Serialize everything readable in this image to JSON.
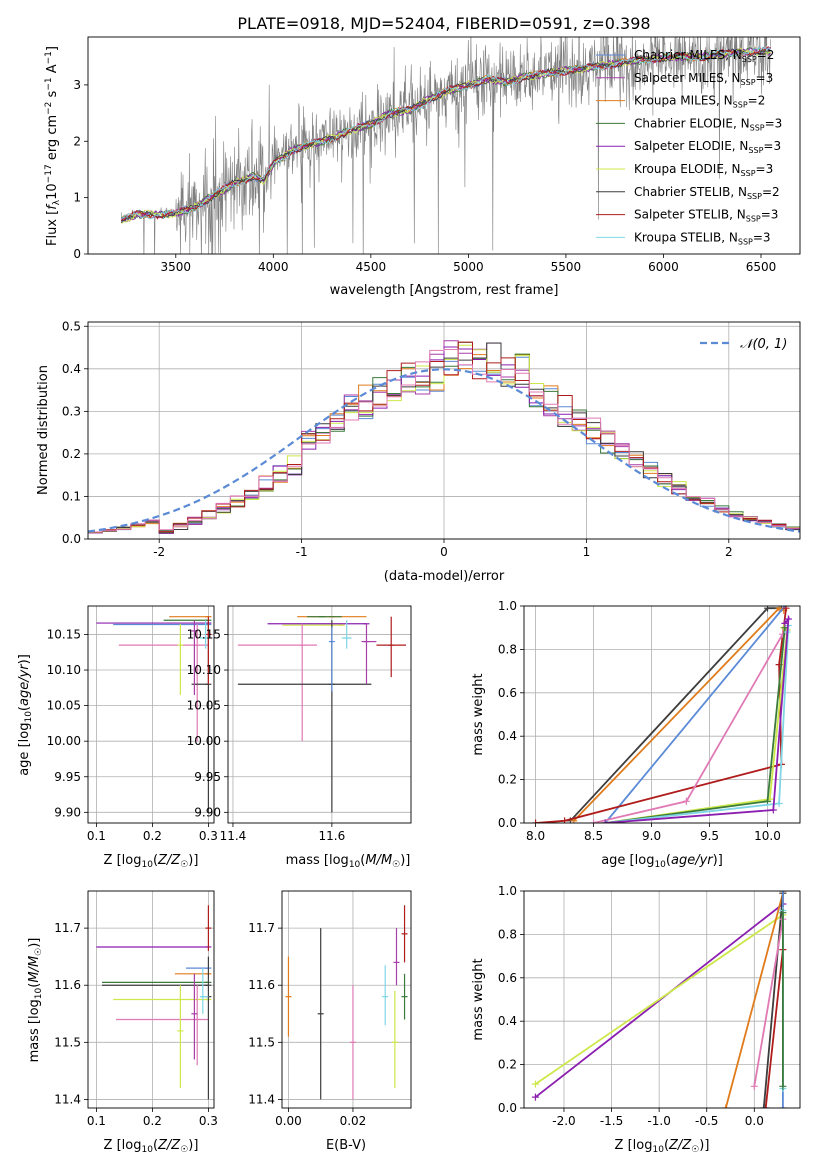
{
  "figure": {
    "title": "PLATE=0918, MJD=52404, FIBERID=0591, z=0.398"
  },
  "colors": {
    "chab_miles": "#5b8ad6",
    "salp_miles": "#a83ea8",
    "krou_miles": "#e07b1b",
    "chab_elodie": "#3a7a3a",
    "salp_elodie": "#8b1fb0",
    "krou_elodie": "#cde84a",
    "chab_stelib": "#3d3d3d",
    "salp_stelib": "#b01c1c",
    "krou_stelib": "#7fd6e6",
    "pink": "#e07ab5",
    "data": "#7f7f7f",
    "normal": "#5b8ad6"
  },
  "chart_data": [
    {
      "id": "spectrum",
      "type": "line",
      "xlabel": "wavelength [Angstrom, rest frame]",
      "ylabel": "Flux [f_λ10^-17 erg cm^-2 s^-1 A^-1]",
      "xlim": [
        3050,
        6700
      ],
      "ylim": [
        0,
        3.85
      ],
      "xticks": [
        3500,
        4000,
        4500,
        5000,
        5500,
        6000,
        6500
      ],
      "yticks": [
        0,
        1,
        2,
        3
      ],
      "legend_position": "right",
      "legend": [
        {
          "label": "Chabrier MILES, N_SSP=2",
          "color": "chab_miles"
        },
        {
          "label": "Salpeter MILES, N_SSP=3",
          "color": "salp_miles"
        },
        {
          "label": "Kroupa MILES, N_SSP=2",
          "color": "krou_miles"
        },
        {
          "label": "Chabrier ELODIE, N_SSP=3",
          "color": "chab_elodie"
        },
        {
          "label": "Salpeter ELODIE, N_SSP=3",
          "color": "salp_elodie"
        },
        {
          "label": "Kroupa ELODIE, N_SSP=3",
          "color": "krou_elodie"
        },
        {
          "label": "Chabrier STELIB, N_SSP=2",
          "color": "chab_stelib"
        },
        {
          "label": "Salpeter STELIB, N_SSP=3",
          "color": "salp_stelib"
        },
        {
          "label": "Kroupa STELIB, N_SSP=3",
          "color": "krou_stelib"
        }
      ],
      "continuum": {
        "x": [
          3220,
          3300,
          3400,
          3500,
          3600,
          3700,
          3800,
          3900,
          3950,
          4000,
          4100,
          4200,
          4300,
          4400,
          4500,
          4600,
          4700,
          4800,
          4900,
          5000,
          5100,
          5200,
          5300,
          5400,
          5500,
          5600,
          5700,
          5800,
          5900,
          6000,
          6100,
          6200,
          6300,
          6400,
          6500,
          6550
        ],
        "y": [
          0.6,
          0.7,
          0.7,
          0.72,
          0.83,
          1.05,
          1.25,
          1.38,
          1.3,
          1.6,
          1.85,
          1.95,
          2.05,
          2.2,
          2.3,
          2.5,
          2.55,
          2.75,
          2.9,
          3.0,
          3.1,
          3.05,
          3.15,
          3.2,
          3.25,
          3.3,
          3.35,
          3.4,
          3.45,
          3.48,
          3.5,
          3.5,
          3.55,
          3.58,
          3.6,
          3.6
        ]
      }
    },
    {
      "id": "residuals",
      "type": "line",
      "xlabel": "(data-model)/error",
      "ylabel": "Normed distribution",
      "xlim": [
        -2.5,
        2.5
      ],
      "ylim": [
        0,
        0.51
      ],
      "xticks": [
        -2,
        -1,
        0,
        1,
        2
      ],
      "yticks": [
        0.0,
        0.1,
        0.2,
        0.3,
        0.4,
        0.5
      ],
      "legend_position": "top-right",
      "legend": [
        {
          "label": "𝒩(0, 1)",
          "color": "normal"
        }
      ],
      "bin_width": 0.1,
      "bin_start": -2.5
    },
    {
      "id": "age_vs_Z",
      "type": "scatter",
      "xlabel": "Z [log10(Z/Z☉)]",
      "ylabel": "age  [log10(age/yr)]",
      "xlim": [
        0.085,
        0.31
      ],
      "ylim": [
        9.885,
        10.19
      ],
      "xticks": [
        0.1,
        0.2,
        0.3
      ],
      "yticks": [
        9.9,
        9.95,
        10.0,
        10.05,
        10.1,
        10.15
      ],
      "points": [
        {
          "x": 0.3,
          "y": 10.166,
          "xlo": 0.1,
          "xhi": 0.3,
          "ylo": 10.166,
          "yhi": 10.166,
          "color": "salp_elodie"
        },
        {
          "x": 0.3,
          "y": 10.175,
          "xlo": 0.23,
          "xhi": 0.3,
          "ylo": 10.175,
          "yhi": 10.175,
          "color": "krou_miles"
        },
        {
          "x": 0.3,
          "y": 10.17,
          "xlo": 0.22,
          "xhi": 0.3,
          "ylo": 10.17,
          "yhi": 10.17,
          "color": "chab_elodie"
        },
        {
          "x": 0.3,
          "y": 10.164,
          "xlo": 0.13,
          "xhi": 0.3,
          "ylo": 10.164,
          "yhi": 10.164,
          "color": "chab_miles"
        },
        {
          "x": 0.28,
          "y": 10.135,
          "xlo": 0.14,
          "xhi": 0.3,
          "ylo": 10.0,
          "yhi": 10.165,
          "color": "pink"
        },
        {
          "x": 0.3,
          "y": 10.08,
          "xlo": 0.27,
          "xhi": 0.3,
          "ylo": 9.9,
          "yhi": 10.17,
          "color": "chab_stelib"
        },
        {
          "x": 0.25,
          "y": 10.135,
          "xlo": 0.25,
          "xhi": 0.25,
          "ylo": 10.065,
          "yhi": 10.165,
          "color": "krou_elodie"
        },
        {
          "x": 0.275,
          "y": 10.155,
          "xlo": 0.275,
          "xhi": 0.275,
          "ylo": 10.065,
          "yhi": 10.17,
          "color": "salp_miles"
        },
        {
          "x": 0.3,
          "y": 10.15,
          "xlo": 0.3,
          "xhi": 0.3,
          "ylo": 10.08,
          "yhi": 10.175,
          "color": "salp_stelib"
        },
        {
          "x": 0.295,
          "y": 10.145,
          "xlo": 0.285,
          "xhi": 0.3,
          "ylo": 10.13,
          "yhi": 10.17,
          "color": "krou_stelib"
        }
      ]
    },
    {
      "id": "age_vs_mass",
      "type": "scatter",
      "xlabel": "mass [log10(M/M☉)]",
      "ylabel": "",
      "xlim": [
        11.39,
        11.76
      ],
      "ylim": [
        9.885,
        10.19
      ],
      "xticks": [
        11.4,
        11.6
      ],
      "yticks": [
        9.9,
        9.95,
        10.0,
        10.05,
        10.1,
        10.15
      ],
      "points": [
        {
          "x": 11.67,
          "y": 10.165,
          "xlo": 11.47,
          "xhi": 11.67,
          "ylo": 10.165,
          "yhi": 10.165,
          "color": "salp_elodie"
        },
        {
          "x": 11.6,
          "y": 10.175,
          "xlo": 11.53,
          "xhi": 11.67,
          "ylo": 10.175,
          "yhi": 10.175,
          "color": "krou_miles"
        },
        {
          "x": 11.58,
          "y": 10.175,
          "xlo": 11.55,
          "xhi": 11.62,
          "ylo": 10.175,
          "yhi": 10.175,
          "color": "chab_elodie"
        },
        {
          "x": 11.62,
          "y": 10.163,
          "xlo": 11.5,
          "xhi": 11.62,
          "ylo": 10.163,
          "yhi": 10.163,
          "color": "krou_elodie"
        },
        {
          "x": 11.54,
          "y": 10.135,
          "xlo": 11.41,
          "xhi": 11.57,
          "ylo": 10.0,
          "yhi": 10.165,
          "color": "pink"
        },
        {
          "x": 11.6,
          "y": 10.08,
          "xlo": 11.41,
          "xhi": 11.68,
          "ylo": 9.9,
          "yhi": 10.17,
          "color": "chab_stelib"
        },
        {
          "x": 11.72,
          "y": 10.135,
          "xlo": 11.69,
          "xhi": 11.75,
          "ylo": 10.09,
          "yhi": 10.175,
          "color": "salp_stelib"
        },
        {
          "x": 11.67,
          "y": 10.14,
          "xlo": 11.66,
          "xhi": 11.69,
          "ylo": 10.08,
          "yhi": 10.165,
          "color": "salp_miles"
        },
        {
          "x": 11.63,
          "y": 10.145,
          "xlo": 11.62,
          "xhi": 11.64,
          "ylo": 10.13,
          "yhi": 10.17,
          "color": "krou_stelib"
        },
        {
          "x": 11.6,
          "y": 10.14,
          "xlo": 11.6,
          "xhi": 11.6,
          "ylo": 10.07,
          "yhi": 10.16,
          "color": "chab_miles"
        }
      ]
    },
    {
      "id": "weight_vs_age",
      "type": "line",
      "xlabel": "age  [log10(age/yr)]",
      "ylabel": "mass weight",
      "xlim": [
        7.9,
        10.28
      ],
      "ylim": [
        0,
        1.0
      ],
      "xticks": [
        8.0,
        8.5,
        9.0,
        9.5,
        10.0
      ],
      "yticks": [
        0.0,
        0.2,
        0.4,
        0.6,
        0.8,
        1.0
      ],
      "series": [
        {
          "color": "chab_stelib",
          "x": [
            8.3,
            10.0,
            10.12
          ],
          "y": [
            0.01,
            0.99,
            0.99
          ]
        },
        {
          "color": "krou_miles",
          "x": [
            8.33,
            10.1,
            10.14
          ],
          "y": [
            0.01,
            0.99,
            0.98
          ]
        },
        {
          "color": "chab_miles",
          "x": [
            8.6,
            10.15
          ],
          "y": [
            0.0,
            1.0
          ]
        },
        {
          "color": "salp_stelib",
          "x": [
            8.0,
            8.25,
            10.12,
            10.1,
            10.16
          ],
          "y": [
            0.0,
            0.01,
            0.27,
            0.73,
            0.99
          ]
        },
        {
          "color": "pink",
          "x": [
            8.5,
            9.3,
            10.13
          ],
          "y": [
            0.0,
            0.1,
            0.87
          ]
        },
        {
          "color": "krou_elodie",
          "x": [
            8.6,
            10.02,
            10.17,
            10.14
          ],
          "y": [
            0.0,
            0.11,
            0.89,
            0.9
          ]
        },
        {
          "color": "chab_elodie",
          "x": [
            8.6,
            10.0,
            10.15
          ],
          "y": [
            0.0,
            0.1,
            0.9
          ]
        },
        {
          "color": "krou_stelib",
          "x": [
            8.6,
            10.1,
            10.18,
            10.17
          ],
          "y": [
            0.0,
            0.09,
            0.91,
            0.88
          ]
        },
        {
          "color": "salp_elodie",
          "x": [
            8.6,
            10.05,
            10.18,
            10.15
          ],
          "y": [
            0.0,
            0.06,
            0.94,
            0.92
          ]
        }
      ]
    },
    {
      "id": "mass_vs_Z",
      "type": "scatter",
      "xlabel": "Z [log10(Z/Z☉)]",
      "ylabel": "mass [log10(M/M☉)]",
      "xlim": [
        0.085,
        0.31
      ],
      "ylim": [
        11.385,
        11.765
      ],
      "xticks": [
        0.1,
        0.2,
        0.3
      ],
      "yticks": [
        11.4,
        11.5,
        11.6,
        11.7
      ],
      "points": [
        {
          "x": 0.3,
          "y": 11.667,
          "xlo": 0.1,
          "xhi": 0.3,
          "ylo": 11.667,
          "yhi": 11.667,
          "color": "salp_elodie"
        },
        {
          "x": 0.3,
          "y": 11.605,
          "xlo": 0.11,
          "xhi": 0.3,
          "ylo": 11.605,
          "yhi": 11.605,
          "color": "chab_elodie"
        },
        {
          "x": 0.3,
          "y": 11.6,
          "xlo": 0.11,
          "xhi": 0.3,
          "ylo": 11.6,
          "yhi": 11.6,
          "color": "chab_stelib"
        },
        {
          "x": 0.3,
          "y": 11.63,
          "xlo": 0.26,
          "xhi": 0.3,
          "ylo": 11.63,
          "yhi": 11.63,
          "color": "chab_miles"
        },
        {
          "x": 0.3,
          "y": 11.62,
          "xlo": 0.24,
          "xhi": 0.3,
          "ylo": 11.62,
          "yhi": 11.62,
          "color": "krou_miles"
        },
        {
          "x": 0.3,
          "y": 11.575,
          "xlo": 0.13,
          "xhi": 0.3,
          "ylo": 11.575,
          "yhi": 11.575,
          "color": "krou_elodie"
        },
        {
          "x": 0.28,
          "y": 11.54,
          "xlo": 0.135,
          "xhi": 0.3,
          "ylo": 11.46,
          "yhi": 11.6,
          "color": "pink"
        },
        {
          "x": 0.3,
          "y": 11.7,
          "xlo": 0.3,
          "xhi": 0.3,
          "ylo": 11.66,
          "yhi": 11.74,
          "color": "salp_stelib"
        },
        {
          "x": 0.3,
          "y": 11.58,
          "xlo": 0.3,
          "xhi": 0.3,
          "ylo": 11.4,
          "yhi": 11.65,
          "color": "chab_stelib"
        },
        {
          "x": 0.275,
          "y": 11.55,
          "xlo": 0.275,
          "xhi": 0.275,
          "ylo": 11.47,
          "yhi": 11.62,
          "color": "salp_miles"
        },
        {
          "x": 0.25,
          "y": 11.52,
          "xlo": 0.25,
          "xhi": 0.25,
          "ylo": 11.42,
          "yhi": 11.6,
          "color": "krou_elodie"
        },
        {
          "x": 0.29,
          "y": 11.58,
          "xlo": 0.285,
          "xhi": 0.3,
          "ylo": 11.55,
          "yhi": 11.63,
          "color": "krou_stelib"
        }
      ]
    },
    {
      "id": "mass_vs_ebv",
      "type": "scatter",
      "xlabel": "E(B-V)",
      "ylabel": "",
      "xlim": [
        -0.002,
        0.038
      ],
      "ylim": [
        11.385,
        11.765
      ],
      "xticks": [
        0.0,
        0.02
      ],
      "yticks": [
        11.4,
        11.5,
        11.6,
        11.7
      ],
      "points": [
        {
          "x": 0.0,
          "y": 11.58,
          "ylo": 11.51,
          "yhi": 11.65,
          "color": "krou_miles"
        },
        {
          "x": 0.01,
          "y": 11.55,
          "ylo": 11.4,
          "yhi": 11.7,
          "color": "chab_stelib"
        },
        {
          "x": 0.02,
          "y": 11.5,
          "ylo": 11.4,
          "yhi": 11.6,
          "color": "pink"
        },
        {
          "x": 0.03,
          "y": 11.58,
          "ylo": 11.53,
          "yhi": 11.635,
          "color": "krou_stelib"
        },
        {
          "x": 0.033,
          "y": 11.5,
          "ylo": 11.42,
          "yhi": 11.59,
          "color": "krou_elodie"
        },
        {
          "x": 0.0335,
          "y": 11.64,
          "ylo": 11.6,
          "yhi": 11.7,
          "color": "salp_miles"
        },
        {
          "x": 0.036,
          "y": 11.69,
          "ylo": 11.64,
          "yhi": 11.74,
          "color": "salp_stelib"
        },
        {
          "x": 0.036,
          "y": 11.58,
          "ylo": 11.54,
          "yhi": 11.62,
          "color": "chab_elodie"
        }
      ]
    },
    {
      "id": "weight_vs_Z",
      "type": "line",
      "xlabel": "Z [log10(Z/Z☉)]",
      "ylabel": "mass weight",
      "xlim": [
        -2.42,
        0.48
      ],
      "ylim": [
        0,
        1.0
      ],
      "xticks": [
        -2.0,
        -1.5,
        -1.0,
        -0.5,
        0.0
      ],
      "yticks": [
        0.0,
        0.2,
        0.4,
        0.6,
        0.8,
        1.0
      ],
      "series": [
        {
          "color": "salp_elodie",
          "x": [
            -2.3,
            0.3
          ],
          "y": [
            0.05,
            0.94
          ]
        },
        {
          "color": "krou_elodie",
          "x": [
            -2.3,
            0.3
          ],
          "y": [
            0.11,
            0.89
          ]
        },
        {
          "color": "krou_miles",
          "x": [
            -0.3,
            0.3
          ],
          "y": [
            0.0,
            0.99
          ]
        },
        {
          "color": "salp_stelib",
          "x": [
            0.12,
            0.3,
            0.3
          ],
          "y": [
            0.0,
            0.73,
            1.0
          ]
        },
        {
          "color": "chab_stelib",
          "x": [
            0.1,
            0.3
          ],
          "y": [
            0.0,
            0.99
          ]
        },
        {
          "color": "pink",
          "x": [
            0.0,
            0.3
          ],
          "y": [
            0.1,
            0.87
          ]
        },
        {
          "color": "chab_miles",
          "x": [
            0.3,
            0.3
          ],
          "y": [
            0.0,
            1.0
          ]
        },
        {
          "color": "krou_stelib",
          "x": [
            0.3,
            0.3
          ],
          "y": [
            0.09,
            0.91
          ]
        },
        {
          "color": "chab_elodie",
          "x": [
            0.3,
            0.3
          ],
          "y": [
            0.1,
            0.9
          ]
        }
      ]
    }
  ]
}
